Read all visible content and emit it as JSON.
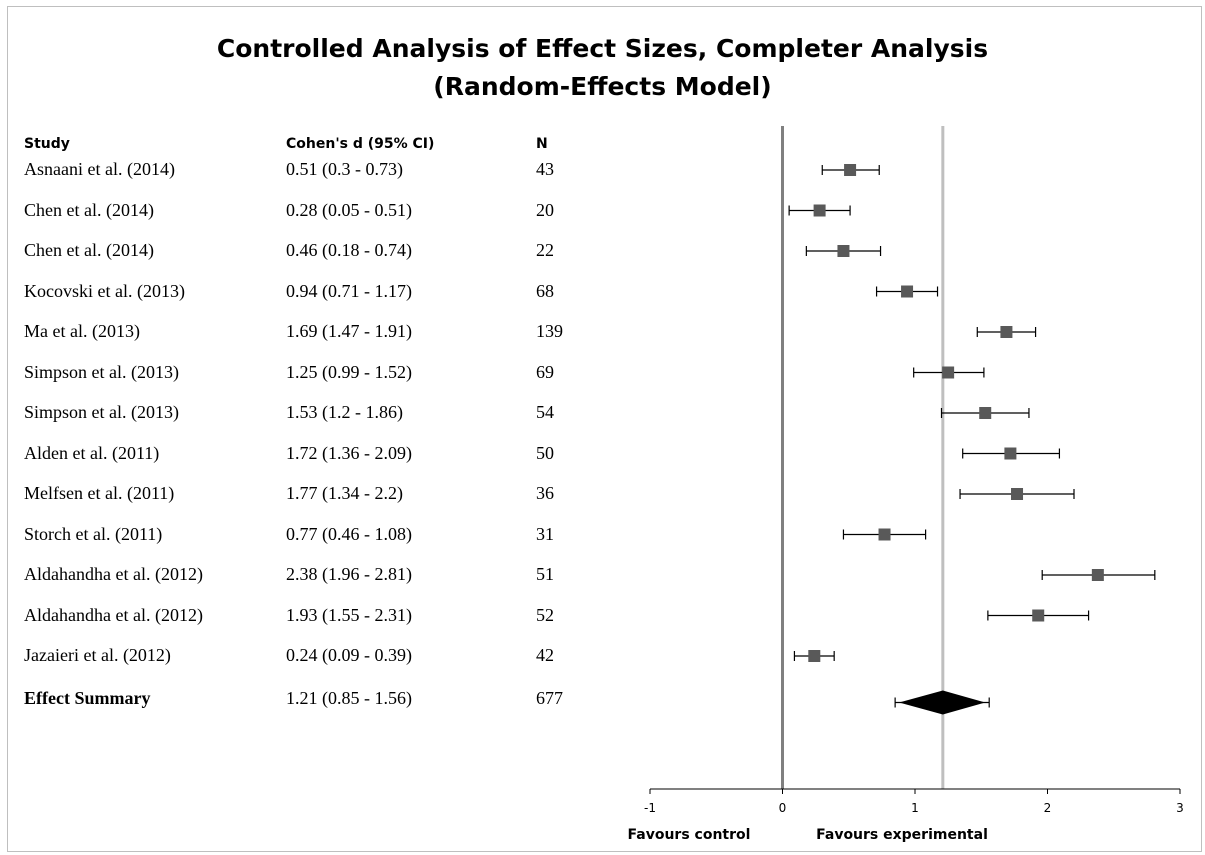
{
  "chart_data": {
    "type": "forest",
    "title_lines": [
      "Controlled Analysis of Effect Sizes, Completer Analysis",
      "(Random-Effects Model)"
    ],
    "columns": {
      "study": "Study",
      "effect": "Cohen's d (95% CI)",
      "n": "N"
    },
    "rows": [
      {
        "study": "Asnaani et al. (2014)",
        "d": 0.51,
        "lo": 0.3,
        "hi": 0.73,
        "ci_text": "0.51 (0.3 - 0.73)",
        "n": "43"
      },
      {
        "study": "Chen et al. (2014)",
        "d": 0.28,
        "lo": 0.05,
        "hi": 0.51,
        "ci_text": "0.28 (0.05 - 0.51)",
        "n": "20"
      },
      {
        "study": "Chen et al. (2014)",
        "d": 0.46,
        "lo": 0.18,
        "hi": 0.74,
        "ci_text": "0.46 (0.18 - 0.74)",
        "n": "22"
      },
      {
        "study": "Kocovski et al. (2013)",
        "d": 0.94,
        "lo": 0.71,
        "hi": 1.17,
        "ci_text": "0.94 (0.71 - 1.17)",
        "n": "68"
      },
      {
        "study": "Ma et al. (2013)",
        "d": 1.69,
        "lo": 1.47,
        "hi": 1.91,
        "ci_text": "1.69 (1.47 - 1.91)",
        "n": "139"
      },
      {
        "study": "Simpson et al. (2013)",
        "d": 1.25,
        "lo": 0.99,
        "hi": 1.52,
        "ci_text": "1.25 (0.99 - 1.52)",
        "n": "69"
      },
      {
        "study": "Simpson et al. (2013)",
        "d": 1.53,
        "lo": 1.2,
        "hi": 1.86,
        "ci_text": "1.53 (1.2 - 1.86)",
        "n": "54"
      },
      {
        "study": "Alden et al. (2011)",
        "d": 1.72,
        "lo": 1.36,
        "hi": 2.09,
        "ci_text": "1.72 (1.36 - 2.09)",
        "n": "50"
      },
      {
        "study": "Melfsen et al. (2011)",
        "d": 1.77,
        "lo": 1.34,
        "hi": 2.2,
        "ci_text": "1.77 (1.34 - 2.2)",
        "n": "36"
      },
      {
        "study": "Storch et al. (2011)",
        "d": 0.77,
        "lo": 0.46,
        "hi": 1.08,
        "ci_text": "0.77 (0.46 - 1.08)",
        "n": "31"
      },
      {
        "study": "Aldahandha et al. (2012)",
        "d": 2.38,
        "lo": 1.96,
        "hi": 2.81,
        "ci_text": "2.38 (1.96 - 2.81)",
        "n": "51"
      },
      {
        "study": "Aldahandha et al. (2012)",
        "d": 1.93,
        "lo": 1.55,
        "hi": 2.31,
        "ci_text": "1.93 (1.55 - 2.31)",
        "n": "52"
      },
      {
        "study": "Jazaieri et al. (2012)",
        "d": 0.24,
        "lo": 0.09,
        "hi": 0.39,
        "ci_text": "0.24 (0.09 - 0.39)",
        "n": "42"
      }
    ],
    "summary": {
      "label": "Effect Summary",
      "d": 1.21,
      "lo": 0.85,
      "hi": 1.56,
      "ci_text": "1.21 (0.85 - 1.56)",
      "n": "677"
    },
    "xlim": [
      -1,
      3
    ],
    "x_ticks": [
      "-1",
      "0",
      "1",
      "2",
      "3"
    ],
    "x_tick_values": [
      -1,
      0,
      1,
      2,
      3
    ],
    "x_captions": {
      "left": "Favours control",
      "right": "Favours experimental"
    },
    "null_line_value": 0,
    "summary_line_value": 1.21,
    "colors": {
      "marker": "#595959",
      "null_line": "#808080",
      "summary_line": "#bfbfbf",
      "diamond": "#000000",
      "ci": "#000000"
    }
  }
}
